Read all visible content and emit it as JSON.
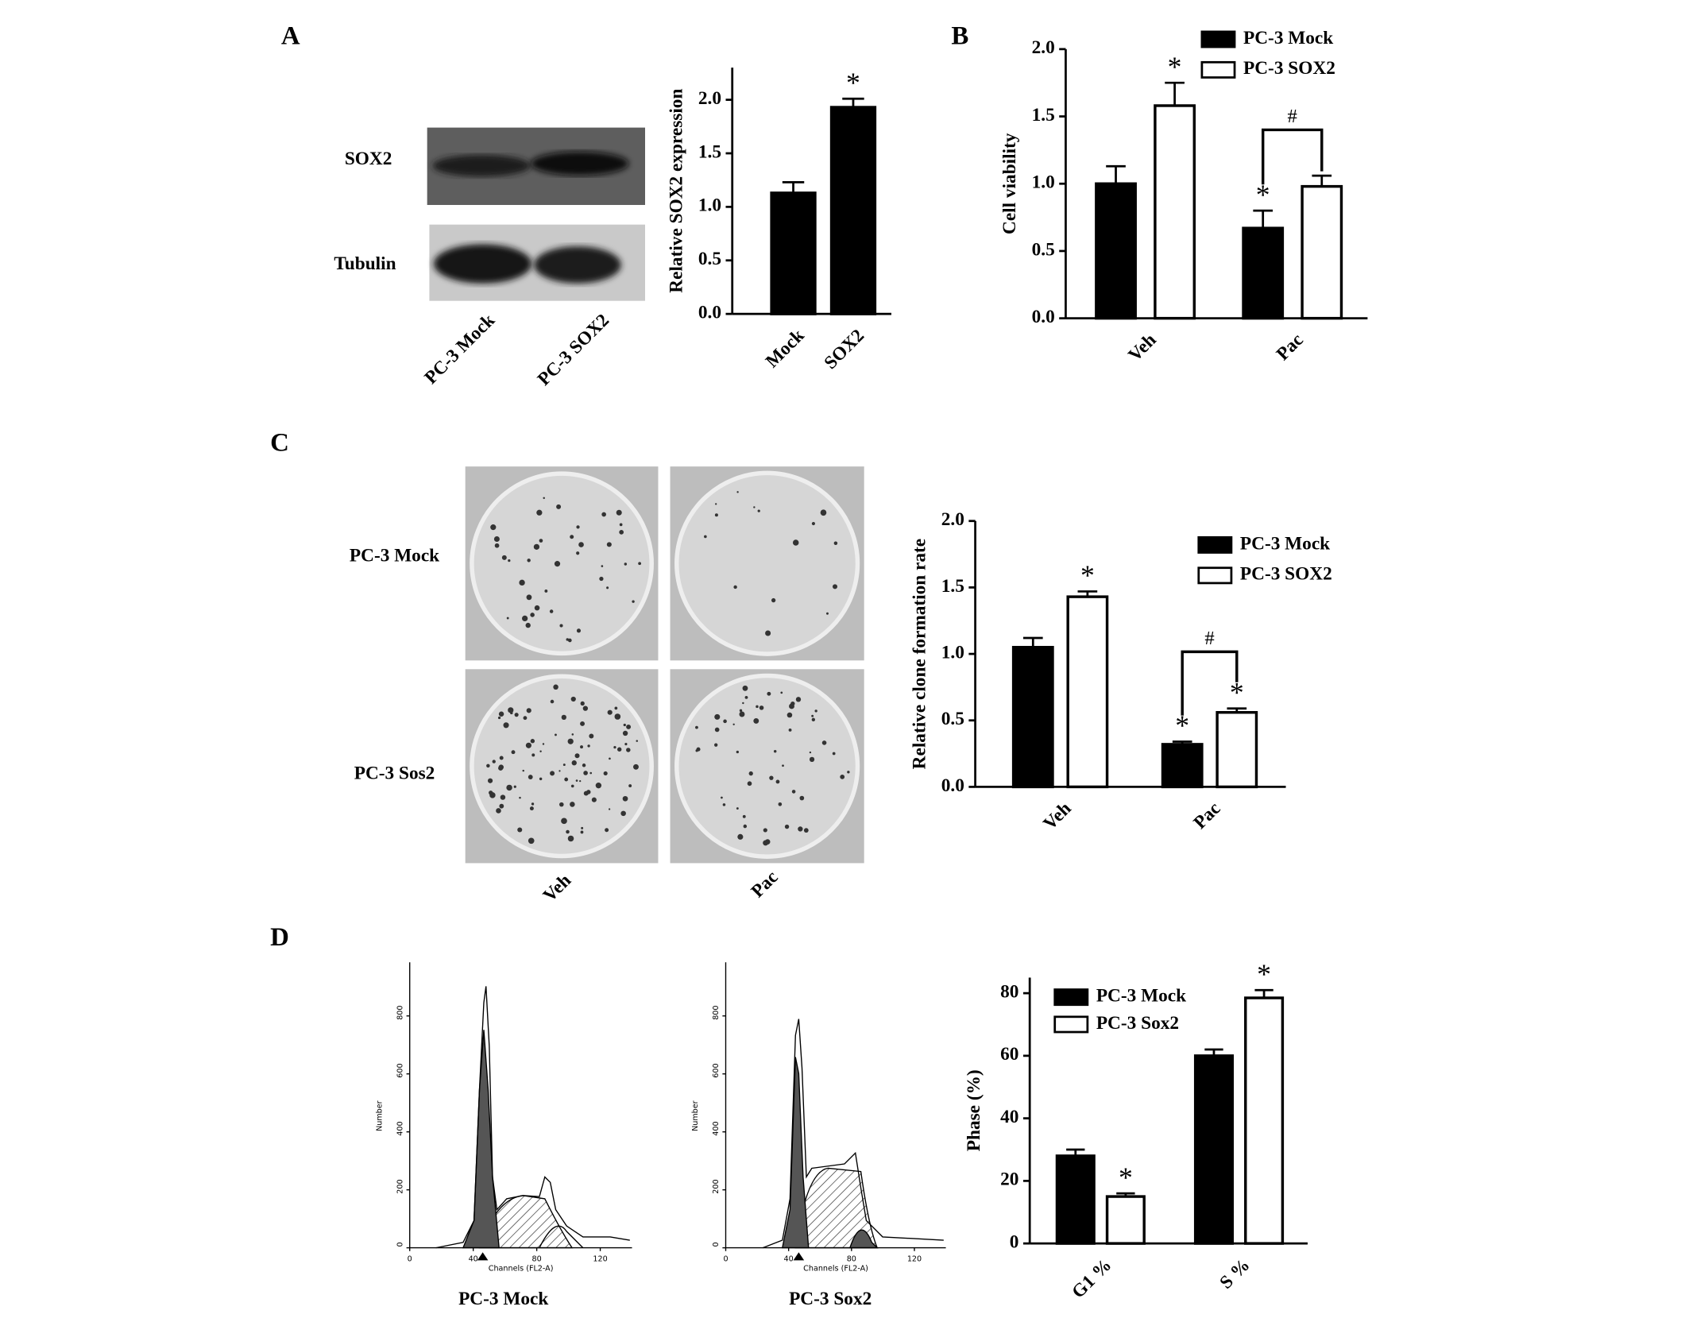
{
  "panels": [
    "A",
    "B",
    "C",
    "D"
  ],
  "blot": {
    "rows": [
      "SOX2",
      "Tubulin"
    ],
    "lanes": [
      "PC-3 Mock",
      "PC-3 SOX2"
    ]
  },
  "colony": {
    "rows": [
      "PC-3 Mock",
      "PC-3 Sos2"
    ],
    "columns": [
      "Veh",
      "Pac"
    ]
  },
  "chart_data": [
    {
      "type": "bar",
      "y_label": "Relative SOX2 expression",
      "categories": [
        "Mock",
        "SOX2"
      ],
      "values": [
        1.13,
        1.93
      ],
      "errors": [
        0.1,
        0.08
      ],
      "markers": [
        null,
        "*"
      ],
      "color": "#000000",
      "ylim": [
        0,
        2.3
      ],
      "yticks": [
        {
          "value": 0,
          "label": "0.0"
        },
        {
          "value": 0.5,
          "label": "0.5"
        },
        {
          "value": 1,
          "label": "1.0"
        },
        {
          "value": 1.5,
          "label": "1.5"
        },
        {
          "value": 2,
          "label": "2.0"
        }
      ]
    },
    {
      "type": "grouped-bar",
      "y_label": "Cell viability",
      "categories": [
        "Veh",
        "Pac"
      ],
      "series": [
        {
          "name": "PC-3 Mock",
          "color": "#000000",
          "values": [
            1.0,
            0.67
          ],
          "errors": [
            0.13,
            0.13
          ],
          "markers": [
            null,
            "*"
          ]
        },
        {
          "name": "PC-3 SOX2",
          "color": "#ffffff",
          "values": [
            1.58,
            0.98
          ],
          "errors": [
            0.17,
            0.08
          ],
          "markers": [
            "*",
            null
          ]
        }
      ],
      "bracket": "#",
      "ylim": [
        0,
        2
      ],
      "yticks": [
        {
          "value": 0,
          "label": "0.0"
        },
        {
          "value": 0.5,
          "label": "0.5"
        },
        {
          "value": 1,
          "label": "1.0"
        },
        {
          "value": 1.5,
          "label": "1.5"
        },
        {
          "value": 2,
          "label": "2.0"
        }
      ]
    },
    {
      "type": "grouped-bar",
      "y_label": "Relative clone formation rate",
      "categories": [
        "Veh",
        "Pac"
      ],
      "series": [
        {
          "name": "PC-3 Mock",
          "color": "#000000",
          "values": [
            1.05,
            0.32
          ],
          "errors": [
            0.07,
            0.02
          ],
          "markers": [
            null,
            "*"
          ]
        },
        {
          "name": "PC-3 SOX2",
          "color": "#ffffff",
          "values": [
            1.43,
            0.56
          ],
          "errors": [
            0.04,
            0.03
          ],
          "markers": [
            "*",
            "*"
          ]
        }
      ],
      "bracket": "#",
      "ylim": [
        0,
        2
      ],
      "yticks": [
        {
          "value": 0,
          "label": "0.0"
        },
        {
          "value": 0.5,
          "label": "0.5"
        },
        {
          "value": 1,
          "label": "1.0"
        },
        {
          "value": 1.5,
          "label": "1.5"
        },
        {
          "value": 2,
          "label": "2.0"
        }
      ]
    },
    {
      "type": "grouped-bar",
      "y_label": "Phase (%)",
      "categories": [
        "G1 %",
        "S %"
      ],
      "series": [
        {
          "name": "PC-3 Mock",
          "color": "#000000",
          "values": [
            28,
            60
          ],
          "errors": [
            2,
            2
          ],
          "markers": [
            null,
            null
          ]
        },
        {
          "name": "PC-3 Sox2",
          "color": "#ffffff",
          "values": [
            15,
            78.5
          ],
          "errors": [
            1,
            2.5
          ],
          "markers": [
            "*",
            "*"
          ]
        }
      ],
      "ylim": [
        0,
        85
      ],
      "yticks": [
        0,
        20,
        40,
        60,
        80
      ]
    },
    {
      "type": "flow-histogram",
      "title": "PC-3 Mock",
      "x_label": "Channels (FL2-A)",
      "y_label": "Number",
      "xlim": [
        0,
        140
      ],
      "xticks": [
        0,
        40,
        80,
        120
      ],
      "ylim": [
        0,
        985
      ],
      "yticks": [
        0,
        200,
        400,
        600,
        800
      ]
    },
    {
      "type": "flow-histogram",
      "title": "PC-3 Sox2",
      "x_label": "Channels (FL2-A)",
      "y_label": "Number",
      "xlim": [
        0,
        140
      ],
      "xticks": [
        0,
        40,
        80,
        120
      ],
      "ylim": [
        0,
        985
      ],
      "yticks": [
        0,
        200,
        400,
        600,
        800
      ]
    }
  ]
}
